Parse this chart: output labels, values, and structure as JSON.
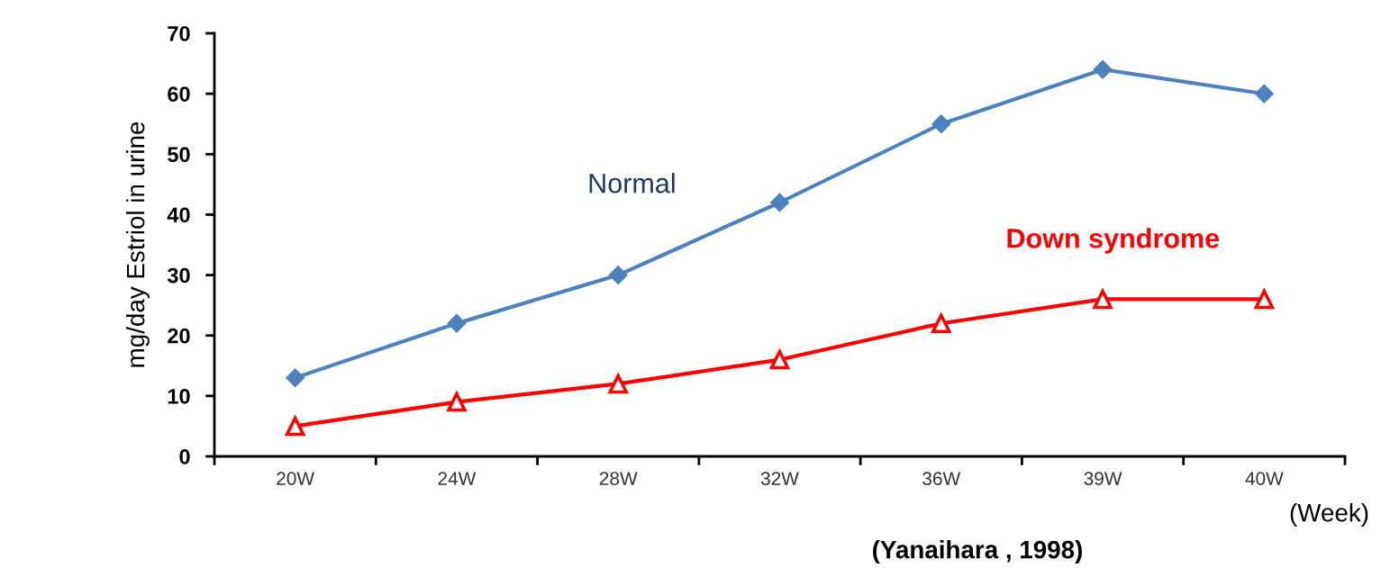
{
  "chart_data": {
    "type": "line",
    "ylabel": "mg/day Estriol in urine",
    "xlabel": "(Week)",
    "categories": [
      "20W",
      "24W",
      "28W",
      "32W",
      "36W",
      "39W",
      "40W"
    ],
    "series": [
      {
        "name": "Normal",
        "color": "#4f81bd",
        "marker": "diamond",
        "values": [
          13,
          22,
          30,
          42,
          55,
          64,
          60
        ]
      },
      {
        "name": "Down syndrome",
        "color": "#ff0000",
        "marker": "triangle",
        "values": [
          5,
          9,
          12,
          16,
          22,
          26,
          26
        ]
      }
    ],
    "ylim": [
      0,
      70
    ],
    "yticks": [
      0,
      10,
      20,
      30,
      40,
      50,
      60,
      70
    ],
    "grid": false,
    "legend": false,
    "line_style": "solid",
    "annotations": [
      "(Yanaihara , 1998)"
    ]
  }
}
